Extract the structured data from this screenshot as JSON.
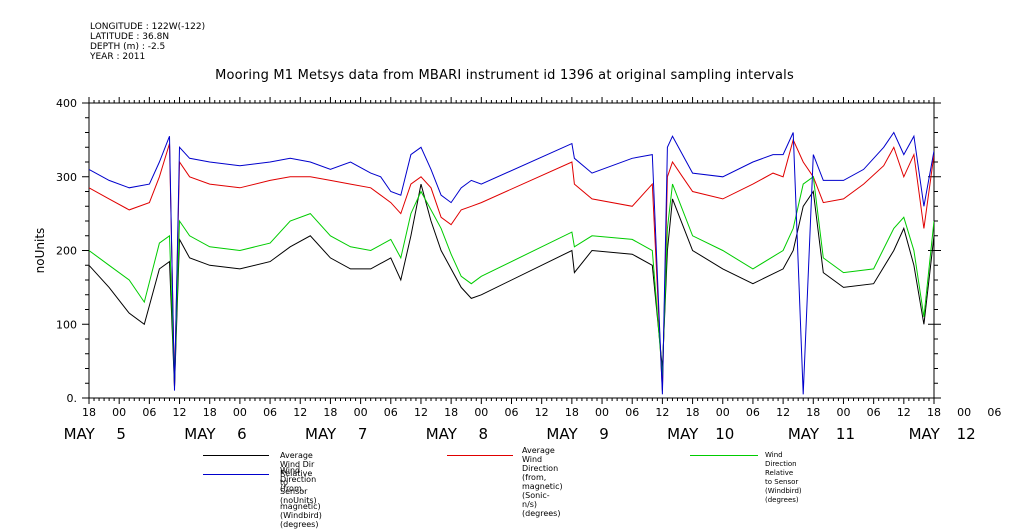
{
  "header": {
    "meta_lines": [
      "LONGITUDE : 122W(-122)",
      "LATITUDE : 36.8N",
      "DEPTH (m) : -2.5",
      "YEAR : 2011"
    ]
  },
  "chart_data": {
    "type": "line",
    "title": "Mooring M1 Metsys data from MBARI instrument id 1396 at original sampling intervals",
    "ylabel": "noUnits",
    "ylim": [
      0,
      400
    ],
    "yticks": [
      0,
      100,
      200,
      300,
      400
    ],
    "x_hour_ticks": [
      "18",
      "00",
      "06",
      "12",
      "18",
      "00",
      "06",
      "12",
      "18",
      "00",
      "06",
      "12",
      "18",
      "00",
      "06",
      "12",
      "18",
      "00",
      "06",
      "12",
      "18",
      "00",
      "06",
      "12",
      "18",
      "00",
      "06",
      "12",
      "18",
      "00",
      "06",
      "12",
      "18",
      "00",
      "06",
      "12",
      "18",
      "00",
      "06",
      "12",
      "18",
      "00",
      "06",
      "12",
      "18"
    ],
    "x_day_labels": [
      "MAY 5",
      "MAY 6",
      "MAY 7",
      "MAY 8",
      "MAY 9",
      "MAY 10",
      "MAY 11",
      "MAY 12"
    ],
    "x_range_hours": [
      0,
      168
    ],
    "grid": false,
    "series": [
      {
        "name": "Average Wind Dir Relative to Sensor (noUnits)",
        "color": "#000000",
        "points": [
          [
            0,
            180
          ],
          [
            4,
            150
          ],
          [
            8,
            115
          ],
          [
            11,
            100
          ],
          [
            14,
            175
          ],
          [
            16,
            185
          ],
          [
            17,
            15
          ],
          [
            18,
            215
          ],
          [
            20,
            190
          ],
          [
            24,
            180
          ],
          [
            30,
            175
          ],
          [
            36,
            185
          ],
          [
            40,
            205
          ],
          [
            44,
            220
          ],
          [
            48,
            190
          ],
          [
            52,
            175
          ],
          [
            56,
            175
          ],
          [
            60,
            190
          ],
          [
            62,
            160
          ],
          [
            64,
            220
          ],
          [
            66,
            290
          ],
          [
            68,
            240
          ],
          [
            70,
            200
          ],
          [
            74,
            150
          ],
          [
            76,
            135
          ],
          [
            78,
            140
          ],
          [
            96,
            200
          ],
          [
            96.5,
            170
          ],
          [
            100,
            200
          ],
          [
            108,
            195
          ],
          [
            112,
            180
          ],
          [
            114,
            40
          ],
          [
            115,
            200
          ],
          [
            116,
            270
          ],
          [
            120,
            200
          ],
          [
            126,
            175
          ],
          [
            132,
            155
          ],
          [
            138,
            175
          ],
          [
            140,
            200
          ],
          [
            142,
            260
          ],
          [
            144,
            280
          ],
          [
            146,
            170
          ],
          [
            150,
            150
          ],
          [
            156,
            155
          ],
          [
            160,
            200
          ],
          [
            162,
            230
          ],
          [
            164,
            180
          ],
          [
            166,
            100
          ],
          [
            168,
            220
          ]
        ]
      },
      {
        "name": "Average Wind Direction (from, magnetic) (Sonic-n/s) (degrees)",
        "color": "#e00000",
        "points": [
          [
            0,
            285
          ],
          [
            4,
            270
          ],
          [
            8,
            255
          ],
          [
            12,
            265
          ],
          [
            14,
            300
          ],
          [
            16,
            345
          ],
          [
            17,
            15
          ],
          [
            18,
            320
          ],
          [
            20,
            300
          ],
          [
            24,
            290
          ],
          [
            30,
            285
          ],
          [
            36,
            295
          ],
          [
            40,
            300
          ],
          [
            44,
            300
          ],
          [
            48,
            295
          ],
          [
            52,
            290
          ],
          [
            56,
            285
          ],
          [
            58,
            275
          ],
          [
            60,
            265
          ],
          [
            62,
            250
          ],
          [
            64,
            290
          ],
          [
            66,
            300
          ],
          [
            68,
            285
          ],
          [
            70,
            245
          ],
          [
            72,
            235
          ],
          [
            74,
            255
          ],
          [
            76,
            260
          ],
          [
            78,
            265
          ],
          [
            96,
            320
          ],
          [
            96.5,
            290
          ],
          [
            100,
            270
          ],
          [
            108,
            260
          ],
          [
            112,
            290
          ],
          [
            114,
            10
          ],
          [
            115,
            300
          ],
          [
            116,
            320
          ],
          [
            118,
            300
          ],
          [
            120,
            280
          ],
          [
            126,
            270
          ],
          [
            132,
            290
          ],
          [
            136,
            305
          ],
          [
            138,
            300
          ],
          [
            140,
            350
          ],
          [
            142,
            320
          ],
          [
            144,
            300
          ],
          [
            146,
            265
          ],
          [
            150,
            270
          ],
          [
            154,
            290
          ],
          [
            158,
            315
          ],
          [
            160,
            340
          ],
          [
            162,
            300
          ],
          [
            164,
            330
          ],
          [
            166,
            230
          ],
          [
            168,
            330
          ]
        ]
      },
      {
        "name": "Wind Direction Relative to Sensor (Windbird) (degrees)",
        "color": "#00cc00",
        "points": [
          [
            0,
            200
          ],
          [
            4,
            180
          ],
          [
            8,
            160
          ],
          [
            11,
            130
          ],
          [
            14,
            210
          ],
          [
            16,
            220
          ],
          [
            17,
            20
          ],
          [
            18,
            240
          ],
          [
            20,
            220
          ],
          [
            24,
            205
          ],
          [
            30,
            200
          ],
          [
            36,
            210
          ],
          [
            40,
            240
          ],
          [
            44,
            250
          ],
          [
            48,
            220
          ],
          [
            52,
            205
          ],
          [
            56,
            200
          ],
          [
            60,
            215
          ],
          [
            62,
            190
          ],
          [
            64,
            250
          ],
          [
            66,
            280
          ],
          [
            68,
            255
          ],
          [
            70,
            230
          ],
          [
            72,
            195
          ],
          [
            74,
            165
          ],
          [
            76,
            155
          ],
          [
            78,
            165
          ],
          [
            96,
            225
          ],
          [
            96.5,
            205
          ],
          [
            100,
            220
          ],
          [
            108,
            215
          ],
          [
            112,
            200
          ],
          [
            114,
            30
          ],
          [
            115,
            230
          ],
          [
            116,
            290
          ],
          [
            120,
            220
          ],
          [
            126,
            200
          ],
          [
            132,
            175
          ],
          [
            138,
            200
          ],
          [
            140,
            230
          ],
          [
            142,
            290
          ],
          [
            144,
            300
          ],
          [
            146,
            190
          ],
          [
            150,
            170
          ],
          [
            156,
            175
          ],
          [
            160,
            230
          ],
          [
            162,
            245
          ],
          [
            164,
            200
          ],
          [
            166,
            110
          ],
          [
            168,
            240
          ]
        ]
      },
      {
        "name": "Wind Direction (from, magnetic) (Windbird) (degrees)",
        "color": "#0000cc",
        "points": [
          [
            0,
            310
          ],
          [
            4,
            295
          ],
          [
            8,
            285
          ],
          [
            12,
            290
          ],
          [
            14,
            320
          ],
          [
            16,
            355
          ],
          [
            17,
            10
          ],
          [
            18,
            340
          ],
          [
            20,
            325
          ],
          [
            24,
            320
          ],
          [
            30,
            315
          ],
          [
            36,
            320
          ],
          [
            40,
            325
          ],
          [
            44,
            320
          ],
          [
            48,
            310
          ],
          [
            52,
            320
          ],
          [
            56,
            305
          ],
          [
            58,
            300
          ],
          [
            60,
            280
          ],
          [
            62,
            275
          ],
          [
            64,
            330
          ],
          [
            66,
            340
          ],
          [
            68,
            310
          ],
          [
            70,
            275
          ],
          [
            72,
            265
          ],
          [
            74,
            285
          ],
          [
            76,
            295
          ],
          [
            78,
            290
          ],
          [
            96,
            345
          ],
          [
            96.5,
            325
          ],
          [
            100,
            305
          ],
          [
            108,
            325
          ],
          [
            112,
            330
          ],
          [
            114,
            5
          ],
          [
            115,
            340
          ],
          [
            116,
            355
          ],
          [
            118,
            330
          ],
          [
            120,
            305
          ],
          [
            126,
            300
          ],
          [
            132,
            320
          ],
          [
            136,
            330
          ],
          [
            138,
            330
          ],
          [
            140,
            360
          ],
          [
            142,
            5
          ],
          [
            144,
            330
          ],
          [
            146,
            295
          ],
          [
            150,
            295
          ],
          [
            154,
            310
          ],
          [
            158,
            340
          ],
          [
            160,
            360
          ],
          [
            162,
            330
          ],
          [
            164,
            355
          ],
          [
            166,
            260
          ],
          [
            168,
            335
          ]
        ]
      }
    ]
  },
  "legend": {
    "items": [
      {
        "label": "Average Wind Dir Relative to Sensor (noUnits)"
      },
      {
        "label": "Average Wind Direction (from,\nmagnetic) (Sonic-n/s) (degrees)"
      },
      {
        "label": "Wind Direction Relative to Sensor (Windbird) (degrees)"
      },
      {
        "label": "Wind Direction (from,\n magnetic) (Windbird) (degrees)"
      }
    ]
  }
}
